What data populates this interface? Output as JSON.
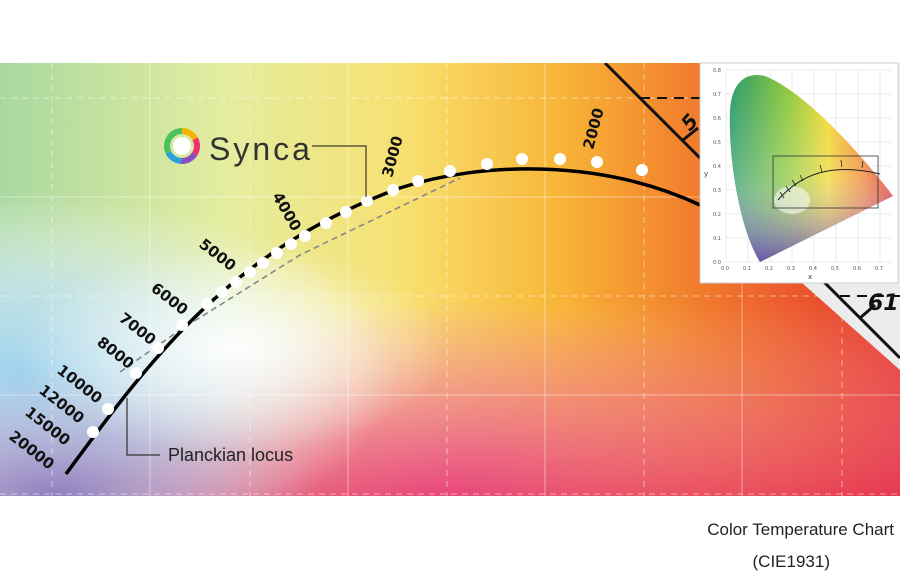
{
  "brand": {
    "name": "Synca",
    "logo_icon": "synca-ring-logo-icon"
  },
  "labels": {
    "planckian_locus": "Planckian locus",
    "axis_mark_top": "5",
    "axis_mark_right": "61"
  },
  "kelvin_ticks": [
    "20000",
    "15000",
    "12000",
    "10000",
    "8000",
    "7000",
    "6000",
    "5000",
    "4000",
    "3000",
    "2000"
  ],
  "caption": {
    "line1": "Color Temperature Chart",
    "line2": "(CIE1931)"
  },
  "inset": {
    "xlabel": "x",
    "ylabel": "y",
    "x_ticks": [
      "0.0",
      "0.1",
      "0.2",
      "0.3",
      "0.4",
      "0.5",
      "0.6",
      "0.7"
    ],
    "y_ticks": [
      "0.0",
      "0.1",
      "0.2",
      "0.3",
      "0.4",
      "0.5",
      "0.6",
      "0.7",
      "0.8"
    ]
  },
  "colors": {
    "locus": "#000000",
    "dashed": "#888888",
    "dots": "#ffffff",
    "logo_text": "#333333"
  }
}
